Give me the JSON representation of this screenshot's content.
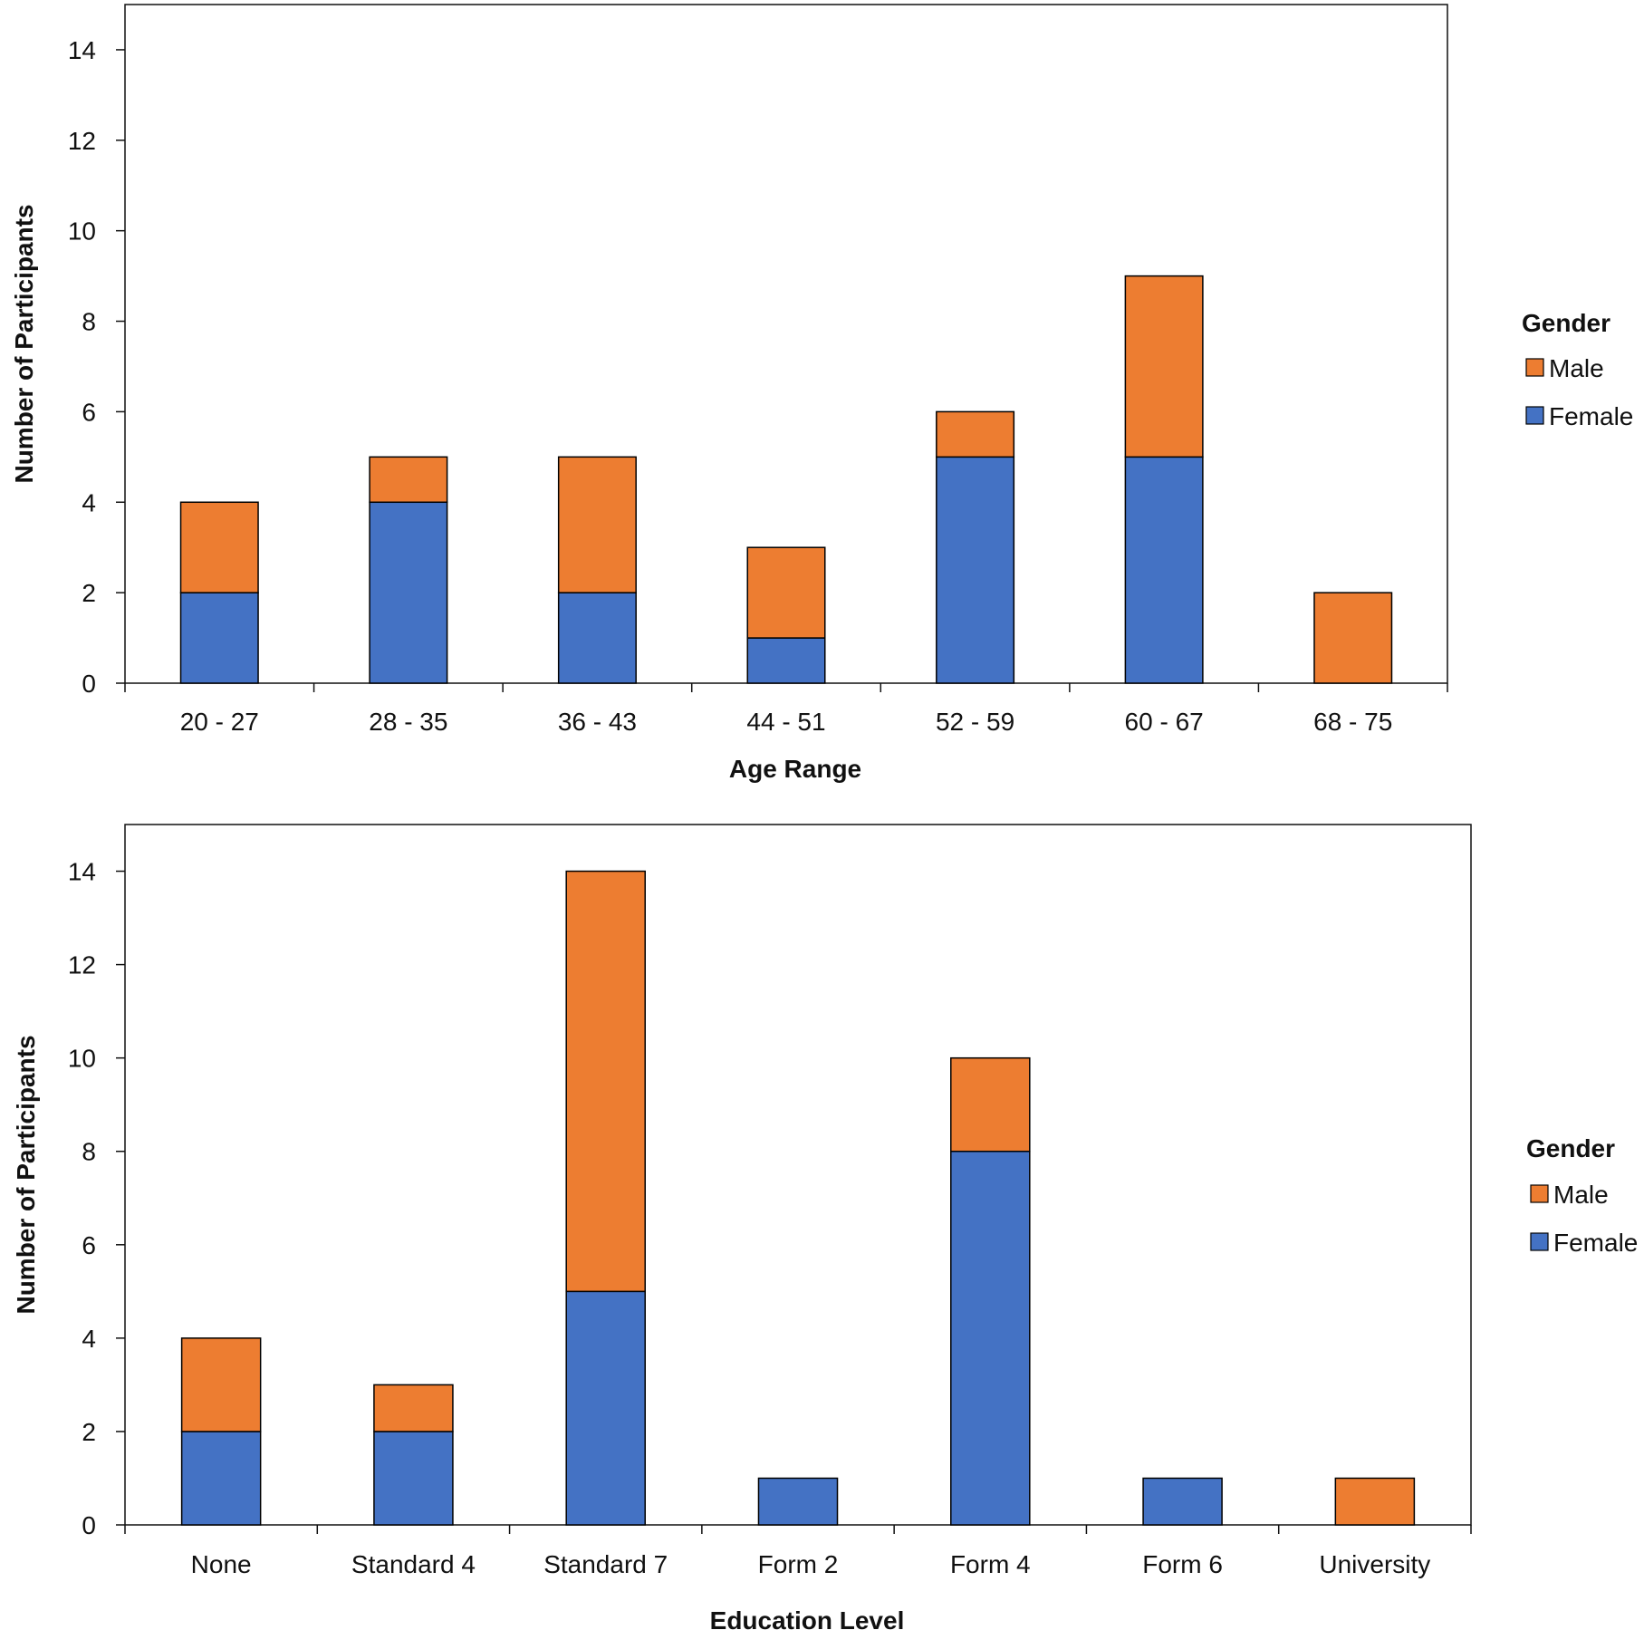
{
  "colors": {
    "male": "#ED7D31",
    "female": "#4472C4",
    "axis": "#111111",
    "bar_edge": "#000000"
  },
  "chart_data": [
    {
      "type": "bar",
      "stacked": true,
      "xlabel": "Age Range",
      "ylabel": "Number of Participants",
      "ylim": [
        0,
        15
      ],
      "yticks": [
        0,
        2,
        4,
        6,
        8,
        10,
        12,
        14
      ],
      "categories": [
        "20 - 27",
        "28 - 35",
        "36 - 43",
        "44 - 51",
        "52 - 59",
        "60 - 67",
        "68 - 75"
      ],
      "series": [
        {
          "name": "Female",
          "color_key": "female",
          "values": [
            2,
            4,
            2,
            1,
            5,
            5,
            0
          ]
        },
        {
          "name": "Male",
          "color_key": "male",
          "values": [
            2,
            1,
            3,
            2,
            1,
            4,
            2
          ]
        }
      ],
      "legend": {
        "title": "Gender",
        "placement": "right",
        "entries": [
          "Male",
          "Female"
        ]
      }
    },
    {
      "type": "bar",
      "stacked": true,
      "xlabel": "Education Level",
      "ylabel": "Number of Participants",
      "ylim": [
        0,
        15
      ],
      "yticks": [
        0,
        2,
        4,
        6,
        8,
        10,
        12,
        14
      ],
      "categories": [
        "None",
        "Standard 4",
        "Standard 7",
        "Form 2",
        "Form 4",
        "Form 6",
        "University"
      ],
      "series": [
        {
          "name": "Female",
          "color_key": "female",
          "values": [
            2,
            2,
            5,
            1,
            8,
            1,
            0
          ]
        },
        {
          "name": "Male",
          "color_key": "male",
          "values": [
            2,
            1,
            9,
            0,
            2,
            0,
            1
          ]
        }
      ],
      "legend": {
        "title": "Gender",
        "placement": "right",
        "entries": [
          "Male",
          "Female"
        ]
      }
    }
  ]
}
